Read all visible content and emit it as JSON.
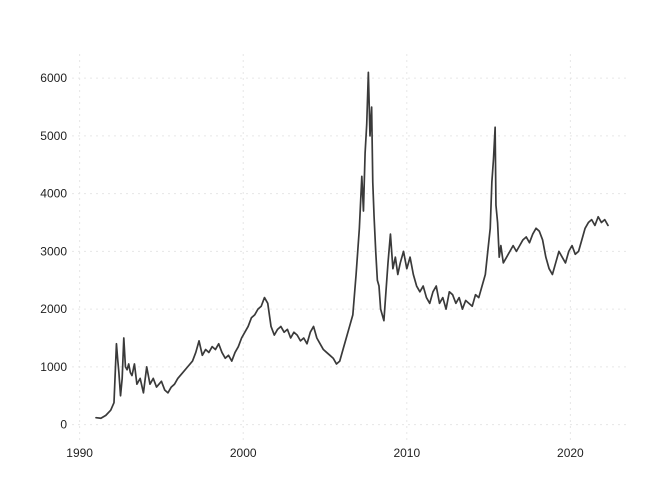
{
  "chart_data": {
    "type": "line",
    "title": "",
    "xlabel": "",
    "ylabel": "",
    "xlim": [
      1989.9,
      2023.4
    ],
    "ylim": [
      -180,
      6280
    ],
    "xticks": [
      1990,
      2000,
      2010,
      2020
    ],
    "yticks": [
      0,
      1000,
      2000,
      3000,
      4000,
      5000,
      6000
    ],
    "grid": true,
    "legend": "none",
    "series": [
      {
        "color": "#3a3a3a",
        "x": [
          1991.0,
          1991.3,
          1991.6,
          1991.9,
          1992.1,
          1992.25,
          1992.32,
          1992.4,
          1992.5,
          1992.6,
          1992.7,
          1992.8,
          1992.9,
          1993.0,
          1993.1,
          1993.2,
          1993.35,
          1993.5,
          1993.7,
          1993.9,
          1994.1,
          1994.3,
          1994.5,
          1994.7,
          1994.85,
          1995.0,
          1995.2,
          1995.4,
          1995.6,
          1995.8,
          1996.0,
          1996.3,
          1996.6,
          1996.9,
          1997.1,
          1997.3,
          1997.5,
          1997.7,
          1997.9,
          1998.1,
          1998.3,
          1998.5,
          1998.7,
          1998.9,
          1999.1,
          1999.3,
          1999.5,
          1999.7,
          1999.9,
          2000.1,
          2000.3,
          2000.5,
          2000.7,
          2000.9,
          2001.1,
          2001.3,
          2001.5,
          2001.7,
          2001.9,
          2002.1,
          2002.3,
          2002.5,
          2002.7,
          2002.9,
          2003.1,
          2003.3,
          2003.5,
          2003.7,
          2003.9,
          2004.1,
          2004.3,
          2004.5,
          2004.7,
          2004.9,
          2005.1,
          2005.3,
          2005.5,
          2005.7,
          2005.9,
          2006.1,
          2006.3,
          2006.5,
          2006.7,
          2006.9,
          2007.1,
          2007.25,
          2007.35,
          2007.45,
          2007.55,
          2007.65,
          2007.75,
          2007.85,
          2007.92,
          2008.0,
          2008.1,
          2008.2,
          2008.3,
          2008.4,
          2008.5,
          2008.6,
          2008.7,
          2008.85,
          2009.0,
          2009.15,
          2009.3,
          2009.45,
          2009.6,
          2009.8,
          2010.0,
          2010.2,
          2010.4,
          2010.6,
          2010.8,
          2011.0,
          2011.2,
          2011.4,
          2011.6,
          2011.8,
          2012.0,
          2012.2,
          2012.4,
          2012.6,
          2012.8,
          2013.0,
          2013.2,
          2013.4,
          2013.6,
          2013.8,
          2014.0,
          2014.2,
          2014.4,
          2014.6,
          2014.8,
          2014.95,
          2015.1,
          2015.2,
          2015.3,
          2015.4,
          2015.45,
          2015.55,
          2015.65,
          2015.75,
          2015.9,
          2016.1,
          2016.3,
          2016.5,
          2016.7,
          2016.9,
          2017.1,
          2017.3,
          2017.5,
          2017.7,
          2017.9,
          2018.1,
          2018.3,
          2018.5,
          2018.7,
          2018.9,
          2019.1,
          2019.3,
          2019.5,
          2019.7,
          2019.9,
          2020.1,
          2020.3,
          2020.5,
          2020.7,
          2020.9,
          2021.1,
          2021.3,
          2021.5,
          2021.7,
          2021.9,
          2022.1,
          2022.3
        ],
        "y": [
          120,
          110,
          160,
          250,
          380,
          1400,
          1150,
          900,
          500,
          800,
          1500,
          1000,
          950,
          1050,
          900,
          850,
          1050,
          700,
          800,
          550,
          1000,
          700,
          800,
          650,
          700,
          750,
          600,
          550,
          650,
          700,
          800,
          900,
          1000,
          1100,
          1250,
          1450,
          1200,
          1300,
          1250,
          1350,
          1300,
          1400,
          1250,
          1150,
          1200,
          1100,
          1250,
          1350,
          1500,
          1600,
          1700,
          1850,
          1900,
          2000,
          2050,
          2200,
          2100,
          1700,
          1550,
          1650,
          1700,
          1600,
          1650,
          1500,
          1600,
          1550,
          1450,
          1500,
          1400,
          1600,
          1700,
          1500,
          1400,
          1300,
          1250,
          1200,
          1150,
          1050,
          1100,
          1300,
          1500,
          1700,
          1900,
          2600,
          3400,
          4300,
          3700,
          4700,
          5200,
          6100,
          5000,
          5500,
          4200,
          3600,
          3000,
          2500,
          2400,
          2000,
          1900,
          1800,
          2200,
          2800,
          3300,
          2700,
          2900,
          2600,
          2800,
          3000,
          2700,
          2900,
          2600,
          2400,
          2300,
          2400,
          2200,
          2100,
          2300,
          2400,
          2100,
          2200,
          2000,
          2300,
          2250,
          2100,
          2200,
          2000,
          2150,
          2100,
          2050,
          2250,
          2200,
          2400,
          2600,
          3000,
          3400,
          4200,
          4600,
          5150,
          3800,
          3500,
          2900,
          3100,
          2800,
          2900,
          3000,
          3100,
          3000,
          3100,
          3200,
          3250,
          3150,
          3300,
          3400,
          3350,
          3200,
          2900,
          2700,
          2600,
          2800,
          3000,
          2900,
          2800,
          3000,
          3100,
          2950,
          3000,
          3200,
          3400,
          3500,
          3550,
          3450,
          3600,
          3500,
          3550,
          3450
        ]
      }
    ]
  }
}
